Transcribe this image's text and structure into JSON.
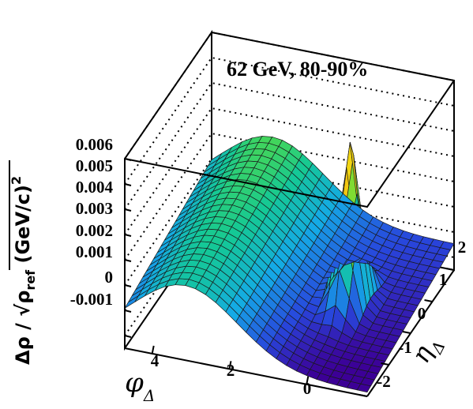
{
  "chart_data": {
    "type": "surface",
    "title": "62 GeV, 80-90%",
    "xlabel": "φ",
    "xlabel_sub": "Δ",
    "ylabel": "η",
    "ylabel_sub": "Δ",
    "zlabel": "Δρ / √ρref (GeV/c)²",
    "zlabel_parts": {
      "main": "Δρ / √",
      "rho": "ρ",
      "rho_sub": "ref",
      "unit": " (GeV/c)",
      "unit_sup": "2"
    },
    "z_ticks": [
      "0.006",
      "0.005",
      "0.004",
      "0.003",
      "0.002",
      "0.001",
      "0",
      "-0.001"
    ],
    "z_tick_values": [
      0.006,
      0.005,
      0.004,
      0.003,
      0.002,
      0.001,
      0,
      -0.001
    ],
    "phi_ticks": [
      "4",
      "2",
      "0"
    ],
    "phi_tick_values": [
      4,
      2,
      0
    ],
    "eta_ticks": [
      "2",
      "1",
      "0",
      "-1",
      "-2"
    ],
    "eta_tick_values": [
      2,
      1,
      0,
      -1,
      -2
    ],
    "phi_range": [
      -1.57,
      4.71
    ],
    "eta_range": [
      -2,
      2
    ],
    "z_range": [
      -0.0015,
      0.006
    ],
    "model": {
      "offset": -0.0009,
      "away_side_amplitude": 0.0028,
      "away_side_center_phi": 3.14,
      "away_side_width_phi": 1.35,
      "near_side_peak_amplitude": 0.0063,
      "near_side_sigma_phi": 0.22,
      "near_side_sigma_eta": 0.33,
      "eta_slope": 0.00022
    },
    "colormap": "rainbow",
    "grid": true
  }
}
